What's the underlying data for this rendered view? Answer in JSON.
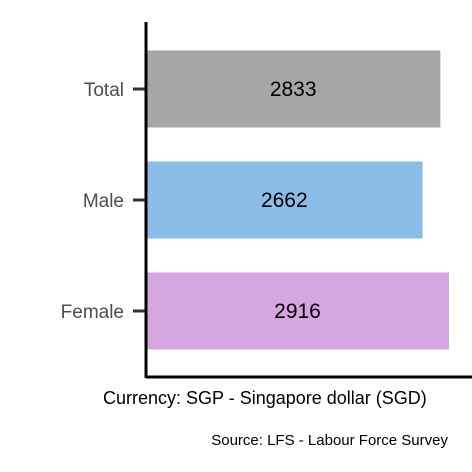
{
  "chart_data": {
    "type": "bar",
    "orientation": "horizontal",
    "categories": [
      "Total",
      "Male",
      "Female"
    ],
    "values": [
      2833,
      2662,
      2916
    ],
    "value_labels": [
      "2833",
      "2662",
      "2916"
    ],
    "colors": [
      "#a6a6a6",
      "#8bbde8",
      "#d5a6e0"
    ],
    "xlabel": "Currency: SGP - Singapore dollar (SGD)",
    "caption": "Source:  LFS - Labour Force Survey",
    "xlim": [
      0,
      2916
    ],
    "grid": false,
    "legend": "none"
  }
}
